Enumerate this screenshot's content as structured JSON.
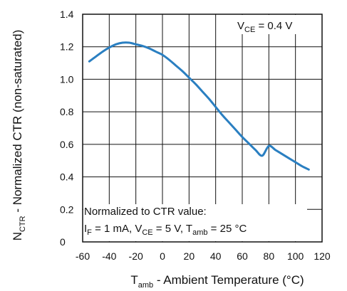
{
  "chart_data": {
    "type": "line",
    "xlabel": {
      "main": "T",
      "sub": "amb",
      "rest": " - Ambient Temperature (°C)"
    },
    "ylabel": {
      "main": "N",
      "sub": "CTR",
      "rest": " - Normalized CTR (non-saturated)"
    },
    "xlim": [
      -60,
      120
    ],
    "ylim": [
      0,
      1.4
    ],
    "x_ticks": [
      -60,
      -40,
      -20,
      0,
      20,
      40,
      60,
      80,
      100,
      120
    ],
    "y_ticks": [
      0,
      0.2,
      0.4,
      0.6,
      0.8,
      1.0,
      1.2,
      1.4
    ],
    "x_tick_labels": [
      "-60",
      "-40",
      "-20",
      "0",
      "20",
      "40",
      "60",
      "80",
      "100",
      "120"
    ],
    "y_tick_labels": [
      "0",
      "0.2",
      "0.4",
      "0.6",
      "0.8",
      "1.0",
      "1.2",
      "1.4"
    ],
    "grid": true,
    "series": [
      {
        "color": "#2a7fc1",
        "x": [
          -55,
          -50,
          -45,
          -40,
          -35,
          -30,
          -25,
          -20,
          -15,
          -10,
          -5,
          0,
          5,
          10,
          15,
          20,
          25,
          30,
          35,
          40,
          45,
          50,
          55,
          60,
          65,
          70,
          75,
          80,
          85,
          90,
          95,
          100,
          105,
          110
        ],
        "y": [
          1.11,
          1.14,
          1.17,
          1.195,
          1.215,
          1.225,
          1.225,
          1.215,
          1.205,
          1.19,
          1.17,
          1.15,
          1.12,
          1.085,
          1.05,
          1.01,
          0.97,
          0.925,
          0.88,
          0.83,
          0.78,
          0.735,
          0.69,
          0.645,
          0.605,
          0.565,
          0.53,
          0.59,
          0.565,
          0.54,
          0.515,
          0.49,
          0.465,
          0.445
        ]
      }
    ],
    "annotations": {
      "condition_top": {
        "main": "V",
        "sub": "CE",
        "rest": " = 0.4 V"
      },
      "note_line1": "Normalized to CTR value:",
      "note_line2": {
        "p1": "I",
        "s1": "F",
        "t1": " = 1 mA, V",
        "s2": "CE",
        "t2": " = 5 V, T",
        "s3": "amb",
        "t3": " = 25 °C"
      }
    }
  }
}
